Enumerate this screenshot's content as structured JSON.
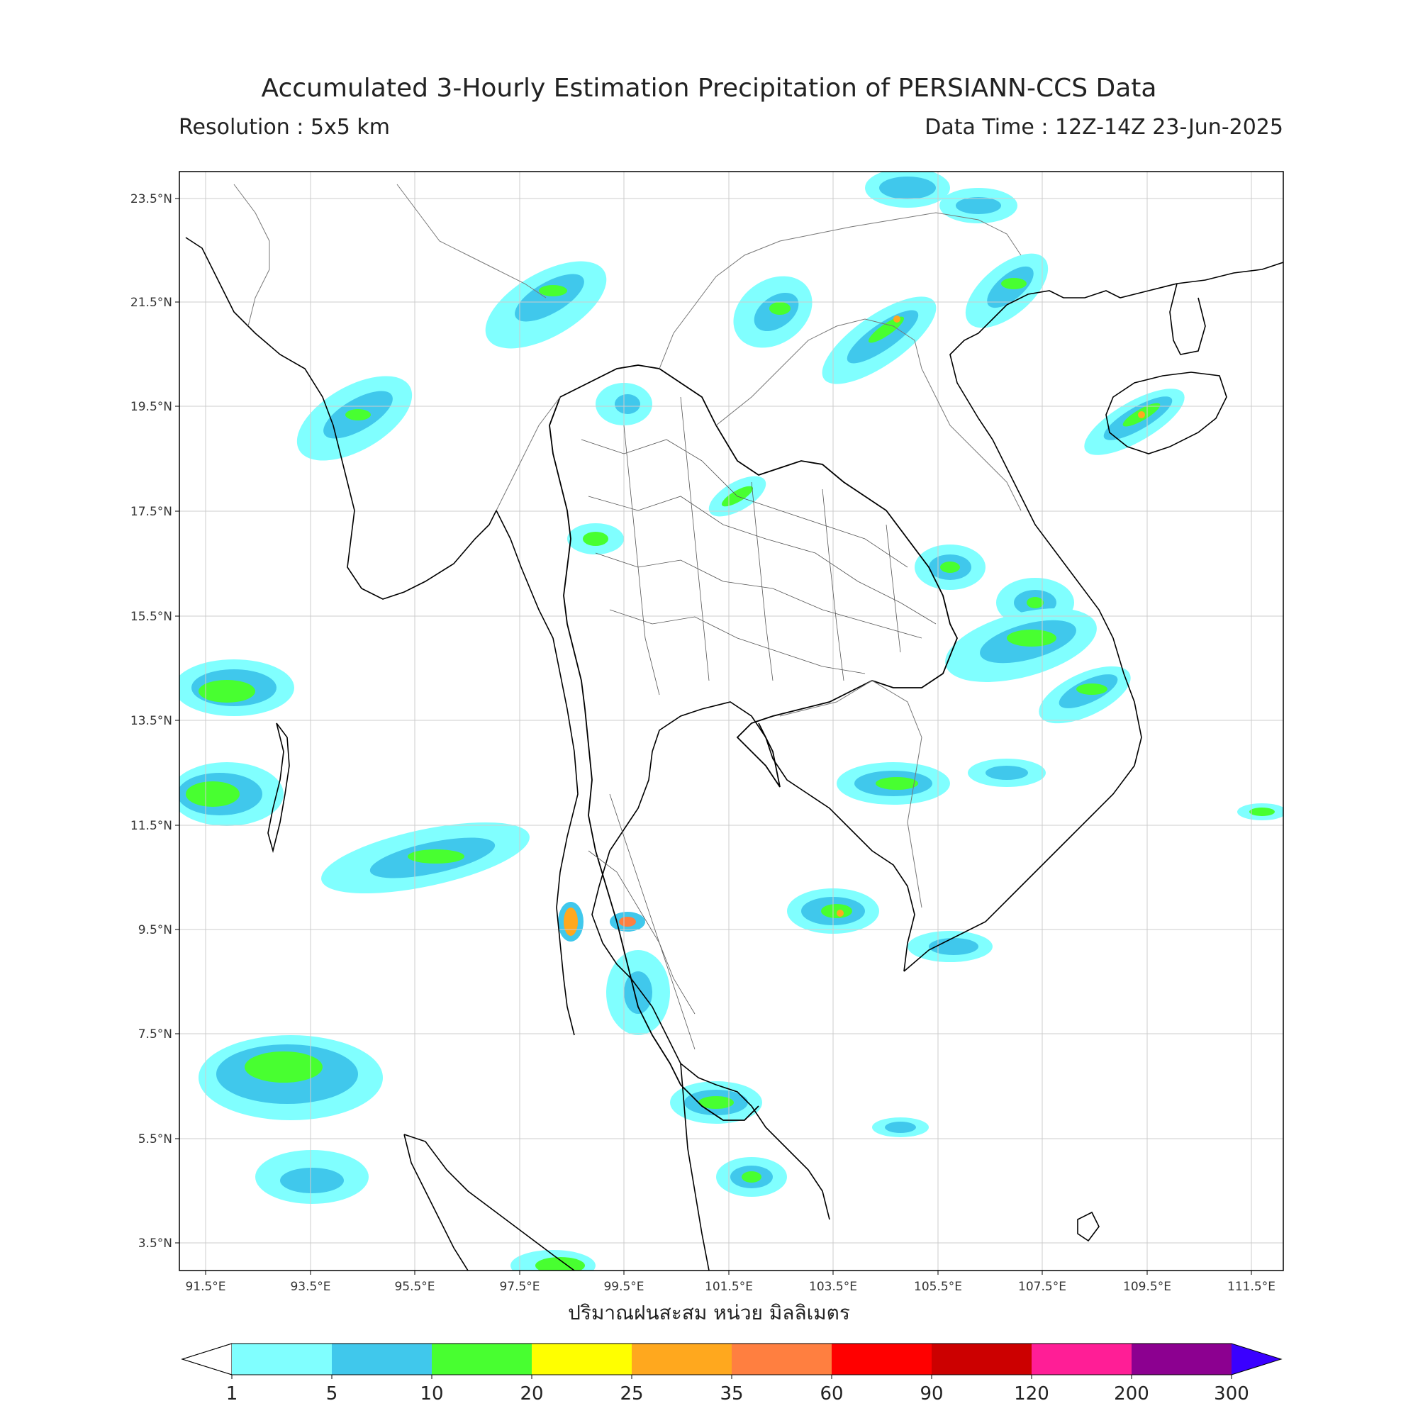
{
  "title": "Accumulated 3-Hourly Estimation Precipitation of PERSIANN-CCS Data",
  "resolution_text": "Resolution : 5x5 km",
  "datatime_text": "Data Time : 12Z-14Z 23-Jun-2025",
  "colorbar_label": "ปริมาณฝนสะสม หน่วย มิลลิเมตร",
  "lon_ticks": [
    "91.5°E",
    "93.5°E",
    "95.5°E",
    "97.5°E",
    "99.5°E",
    "101.5°E",
    "103.5°E",
    "105.5°E",
    "107.5°E",
    "109.5°E",
    "111.5°E"
  ],
  "lat_ticks": [
    "23.5°N",
    "21.5°N",
    "19.5°N",
    "17.5°N",
    "15.5°N",
    "13.5°N",
    "11.5°N",
    "9.5°N",
    "7.5°N",
    "5.5°N",
    "3.5°N"
  ],
  "colorbar": {
    "levels": [
      "1",
      "5",
      "10",
      "20",
      "25",
      "35",
      "60",
      "90",
      "120",
      "200",
      "300"
    ],
    "colors": [
      "#80ffff",
      "#40c8ec",
      "#48ff30",
      "#ffff00",
      "#ffa81e",
      "#ff7f40",
      "#ff0000",
      "#cc0000",
      "#ff1e96",
      "#8c0090"
    ],
    "under_color": "#ffffff",
    "over_color": "#3a00ff"
  },
  "map": {
    "lon_range": [
      91.0,
      112.0
    ],
    "lat_range": [
      3.0,
      24.0
    ],
    "grid": true
  }
}
